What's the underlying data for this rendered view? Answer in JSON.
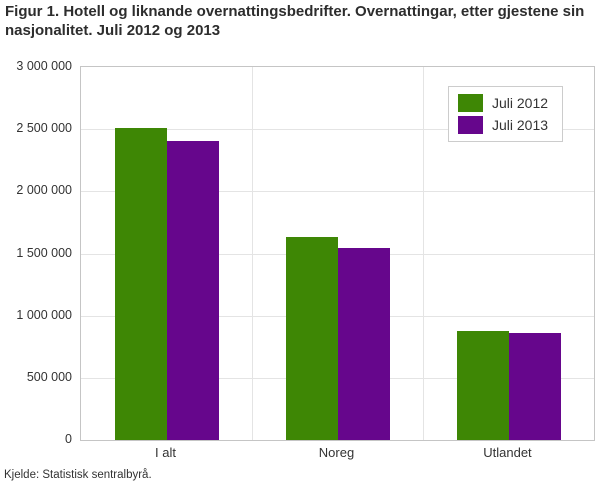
{
  "title": "Figur 1. Hotell og liknande overnattingsbedrifter. Overnattingar, etter gjestene sin nasjonalitet. Juli 2012 og 2013",
  "source": "Kjelde: Statistisk sentralbyrå.",
  "colors": {
    "series_green": "#3E8705",
    "series_purple": "#66068C",
    "gridline": "#E4E4E4",
    "plot_border": "#C5C5C5",
    "text": "#333333"
  },
  "chart_data": {
    "type": "bar",
    "categories": [
      "I alt",
      "Noreg",
      "Utlandet"
    ],
    "series": [
      {
        "name": "Juli 2012",
        "color": "#3E8705",
        "values": [
          2510000,
          1630000,
          880000
        ]
      },
      {
        "name": "Juli 2013",
        "color": "#66068C",
        "values": [
          2405000,
          1545000,
          860000
        ]
      }
    ],
    "ylim": [
      0,
      3000000
    ],
    "ytick_step": 500000,
    "ytick_labels": [
      "0",
      "500 000",
      "1 000 000",
      "1 500 000",
      "2 000 000",
      "2 500 000",
      "3 000 000"
    ],
    "xlabel": "",
    "ylabel": "",
    "grid": true,
    "legend_position": "top-right"
  }
}
